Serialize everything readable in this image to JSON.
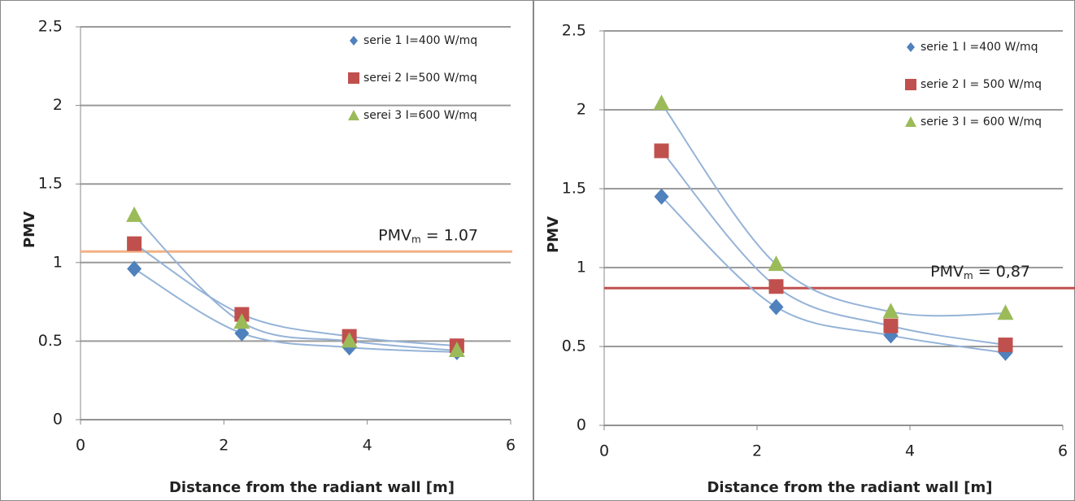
{
  "chart_data": [
    {
      "type": "scatter",
      "ylabel": "PMV",
      "xlabel": "Distance  from the radiant  wall    [m]",
      "x": [
        0.75,
        2.25,
        3.75,
        5.25
      ],
      "series": [
        {
          "name": "serie 1 I=400 W/mq",
          "color": "#4f81bd",
          "marker": "diamond",
          "values": [
            0.96,
            0.55,
            0.46,
            0.43
          ]
        },
        {
          "name": "serei 2 I=500 W/mq",
          "color": "#c0504d",
          "marker": "square",
          "values": [
            1.12,
            0.67,
            0.53,
            0.47
          ]
        },
        {
          "name": "serei 3 I=600 W/mq",
          "color": "#9bbb59",
          "marker": "triangle",
          "values": [
            1.3,
            0.62,
            0.5,
            0.44
          ]
        }
      ],
      "xlim": [
        0,
        6
      ],
      "xticks": [
        0,
        2,
        4,
        6
      ],
      "ylim": [
        0,
        2.5
      ],
      "yticks": [
        0,
        0.5,
        1,
        1.5,
        2,
        2.5
      ],
      "grid": true,
      "legend": "upper right",
      "trendline_color": "#95b3d7",
      "reference_line": {
        "value": 1.07,
        "color": "#f4b183",
        "label_main": "PMV",
        "label_sub": "m",
        "label_rest": "= 1.07"
      }
    },
    {
      "type": "scatter",
      "ylabel": "PMV",
      "xlabel": "Distance  from the radiant  wall    [m]",
      "x": [
        0.75,
        2.25,
        3.75,
        5.25
      ],
      "series": [
        {
          "name": "serie 1 I =400 W/mq",
          "color": "#4f81bd",
          "marker": "diamond",
          "values": [
            1.45,
            0.75,
            0.57,
            0.46
          ]
        },
        {
          "name": "serie 2 I = 500 W/mq",
          "color": "#c0504d",
          "marker": "square",
          "values": [
            1.74,
            0.88,
            0.63,
            0.51
          ]
        },
        {
          "name": "serie 3 I = 600 W/mq",
          "color": "#9bbb59",
          "marker": "triangle",
          "values": [
            2.04,
            1.02,
            0.72,
            0.71
          ]
        }
      ],
      "xlim": [
        0,
        6
      ],
      "xticks": [
        0,
        2,
        4,
        6
      ],
      "ylim": [
        0,
        2.5
      ],
      "yticks": [
        0,
        0.5,
        1,
        1.5,
        2,
        2.5
      ],
      "grid": true,
      "legend": "upper right",
      "trendline_color": "#95b3d7",
      "reference_line": {
        "value": 0.87,
        "color": "#c0504d",
        "label_main": "PMV",
        "label_sub": "m",
        "label_rest": "= 0,87"
      }
    }
  ]
}
